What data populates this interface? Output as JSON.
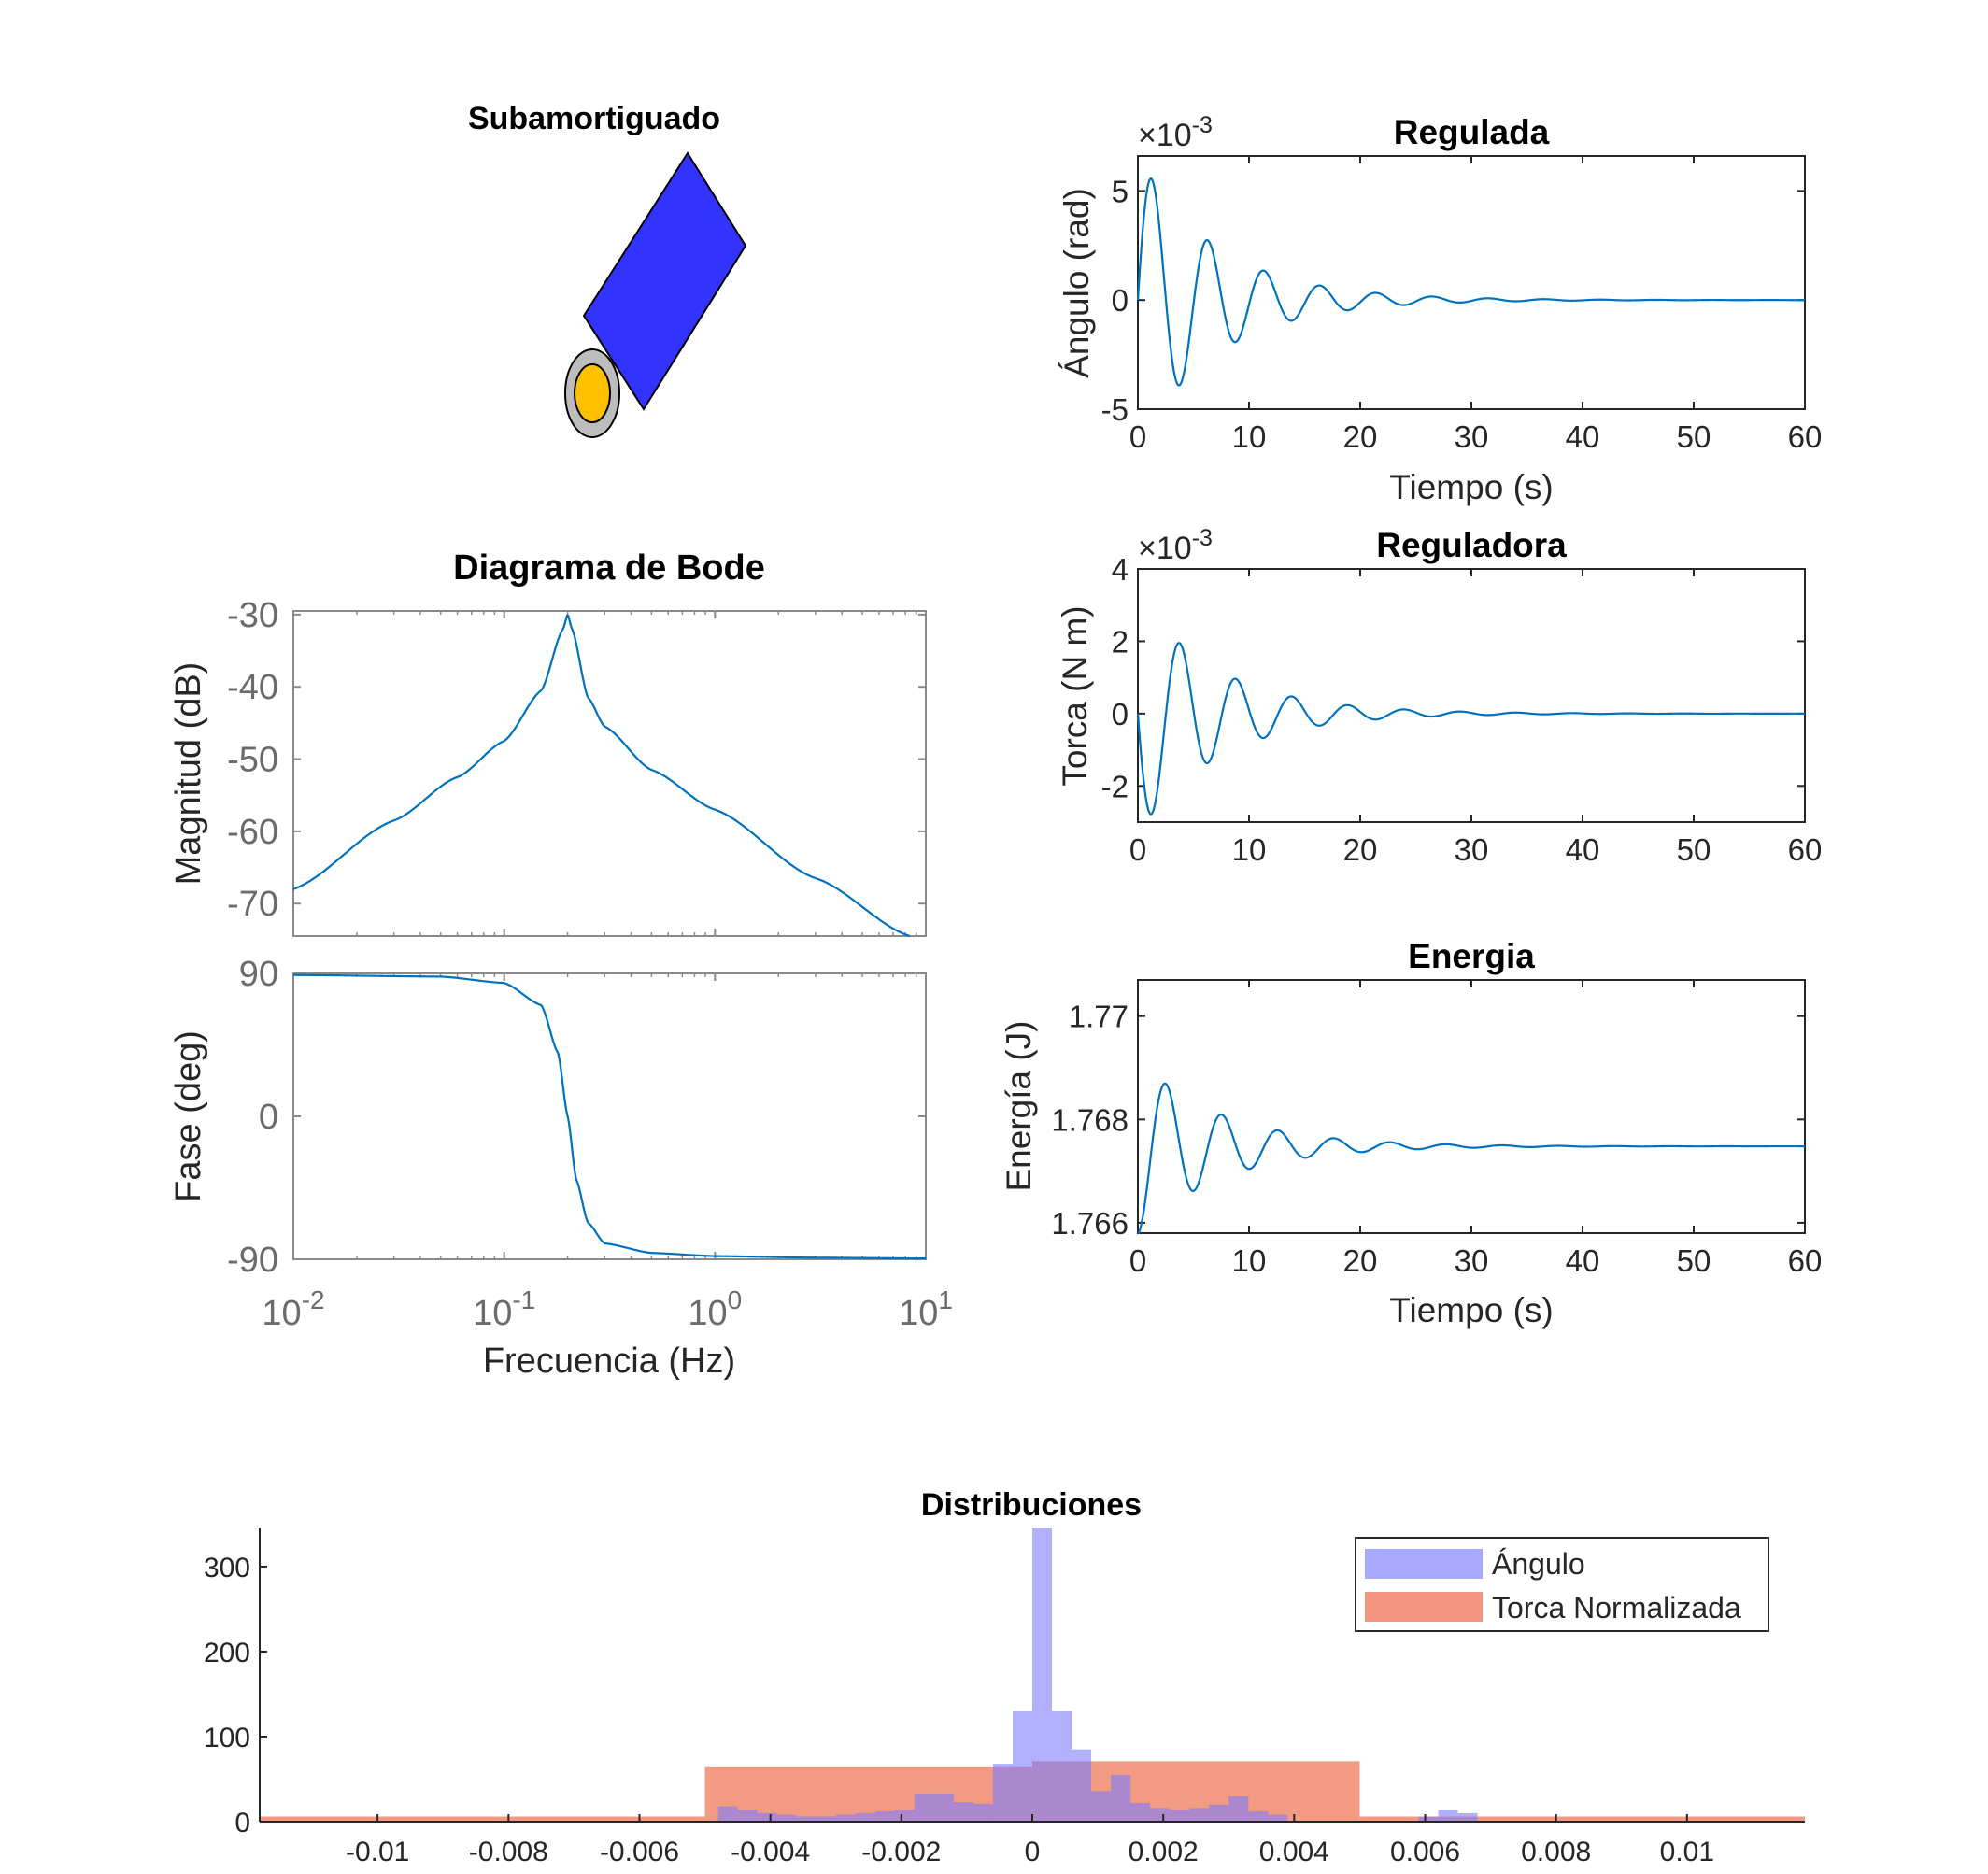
{
  "figure": {
    "pendulum_title": "Subamortiguado",
    "colors": {
      "line": "#0072bd",
      "block": "#3333ff",
      "pivot_outer": "#bdbdbd",
      "pivot_inner": "#ffc000",
      "hist_angle": "#7b7bff",
      "hist_torque": "#ee6a48"
    }
  },
  "chart_data": [
    {
      "id": "regulada",
      "type": "line",
      "title": "Regulada",
      "xlabel": "Tiempo (s)",
      "ylabel": "Ángulo (rad)",
      "exponent_label": "×10",
      "exponent_power": "-3",
      "xlim": [
        0,
        60
      ],
      "ylim": [
        -5,
        6.6
      ],
      "xticks": [
        "0",
        "10",
        "20",
        "30",
        "40",
        "50",
        "60"
      ],
      "yticks": [
        "-5",
        "0",
        "5"
      ],
      "signal": {
        "amplitude": 6.6,
        "decay_rate": 0.14,
        "period_s": 5.05,
        "offset": 0,
        "shape": "sin"
      }
    },
    {
      "id": "reguladora",
      "type": "line",
      "title": "Reguladora",
      "xlabel": "",
      "ylabel": "Torca (N m)",
      "exponent_label": "×10",
      "exponent_power": "-3",
      "xlim": [
        0,
        60
      ],
      "ylim": [
        -3,
        4
      ],
      "xticks": [
        "0",
        "10",
        "20",
        "30",
        "40",
        "50",
        "60"
      ],
      "yticks": [
        "-2",
        "0",
        "2",
        "4"
      ],
      "signal": {
        "amplitude": -3.3,
        "decay_rate": 0.14,
        "period_s": 5.05,
        "offset": 0,
        "shape": "sin"
      }
    },
    {
      "id": "energia",
      "type": "line",
      "title": "Energia",
      "xlabel": "Tiempo (s)",
      "ylabel": "Energía (J)",
      "xlim": [
        0,
        60
      ],
      "ylim": [
        1.7658,
        1.7707
      ],
      "xticks": [
        "0",
        "10",
        "20",
        "30",
        "40",
        "50",
        "60"
      ],
      "yticks": [
        "1.766",
        "1.768",
        "1.77"
      ],
      "signal": {
        "amplitude": 0.0017,
        "decay_rate": 0.135,
        "period_s": 5.05,
        "offset": 1.76748,
        "shape": "cos_from_low"
      }
    },
    {
      "id": "bode",
      "type": "line",
      "title": "Diagrama de Bode",
      "xlabel": "Frecuencia  (Hz)",
      "magnitude": {
        "ylabel": "Magnitud (dB)",
        "ylim": [
          -74.5,
          -29.5
        ],
        "yticks": [
          "-30",
          "-40",
          "-50",
          "-60",
          "-70"
        ],
        "freq_hz": [
          0.01,
          0.03,
          0.06,
          0.1,
          0.15,
          0.19,
          0.2,
          0.21,
          0.25,
          0.3,
          0.5,
          1,
          3,
          8.4
        ],
        "db": [
          -68,
          -58.5,
          -52.5,
          -47.5,
          -40.5,
          -32,
          -30,
          -32,
          -41.5,
          -45.5,
          -51.5,
          -57,
          -66.5,
          -74.5
        ]
      },
      "phase": {
        "ylabel": "Fase (deg)",
        "ylim": [
          -90,
          90
        ],
        "yticks": [
          "90",
          "0",
          "-90"
        ],
        "freq_hz": [
          0.01,
          0.05,
          0.1,
          0.15,
          0.18,
          0.2,
          0.22,
          0.25,
          0.3,
          0.5,
          1,
          3,
          10
        ],
        "deg": [
          89,
          88,
          84,
          70,
          40,
          0,
          -40,
          -67,
          -80,
          -86,
          -88,
          -89,
          -89.5
        ]
      },
      "xlim": [
        0.01,
        10
      ],
      "xticks": [
        {
          "base": "10",
          "exp": "-2"
        },
        {
          "base": "10",
          "exp": "-1"
        },
        {
          "base": "10",
          "exp": "0"
        },
        {
          "base": "10",
          "exp": "1"
        }
      ]
    },
    {
      "id": "distribuciones",
      "type": "bar",
      "title": "Distribuciones",
      "xlim": [
        -0.0118,
        0.0118
      ],
      "ylim": [
        0,
        345
      ],
      "xticks": [
        "-0.01",
        "-0.008",
        "-0.006",
        "-0.004",
        "-0.002",
        "0",
        "0.002",
        "0.004",
        "0.006",
        "0.008",
        "0.01"
      ],
      "yticks": [
        "0",
        "100",
        "200",
        "300"
      ],
      "series": [
        {
          "name": "Ángulo",
          "bin_width": 0.0003,
          "bins_start": [
            -0.0048,
            -0.0045,
            -0.0042,
            -0.0039,
            -0.0036,
            -0.0033,
            -0.003,
            -0.0027,
            -0.0024,
            -0.0021,
            -0.0018,
            -0.0015,
            -0.0012,
            -0.0009,
            -0.0006,
            -0.0003,
            0.0,
            0.0003,
            0.0006,
            0.0009,
            0.0012,
            0.0015,
            0.0018,
            0.0021,
            0.0024,
            0.0027,
            0.003,
            0.0033,
            0.0036,
            0.0059,
            0.0062,
            0.0065
          ],
          "values": [
            18,
            14,
            10,
            8,
            6,
            6,
            8,
            10,
            12,
            14,
            33,
            33,
            23,
            21,
            68,
            130,
            345,
            130,
            85,
            36,
            55,
            22,
            16,
            14,
            16,
            20,
            30,
            12,
            8,
            6,
            14,
            10
          ]
        },
        {
          "name": "Torca Normalizada",
          "bin_width": 0.005,
          "bins_start": [
            -0.015,
            -0.01,
            -0.005,
            0.0,
            0.005,
            0.01
          ],
          "values": [
            6,
            6,
            65,
            71,
            6,
            6
          ]
        }
      ]
    }
  ]
}
